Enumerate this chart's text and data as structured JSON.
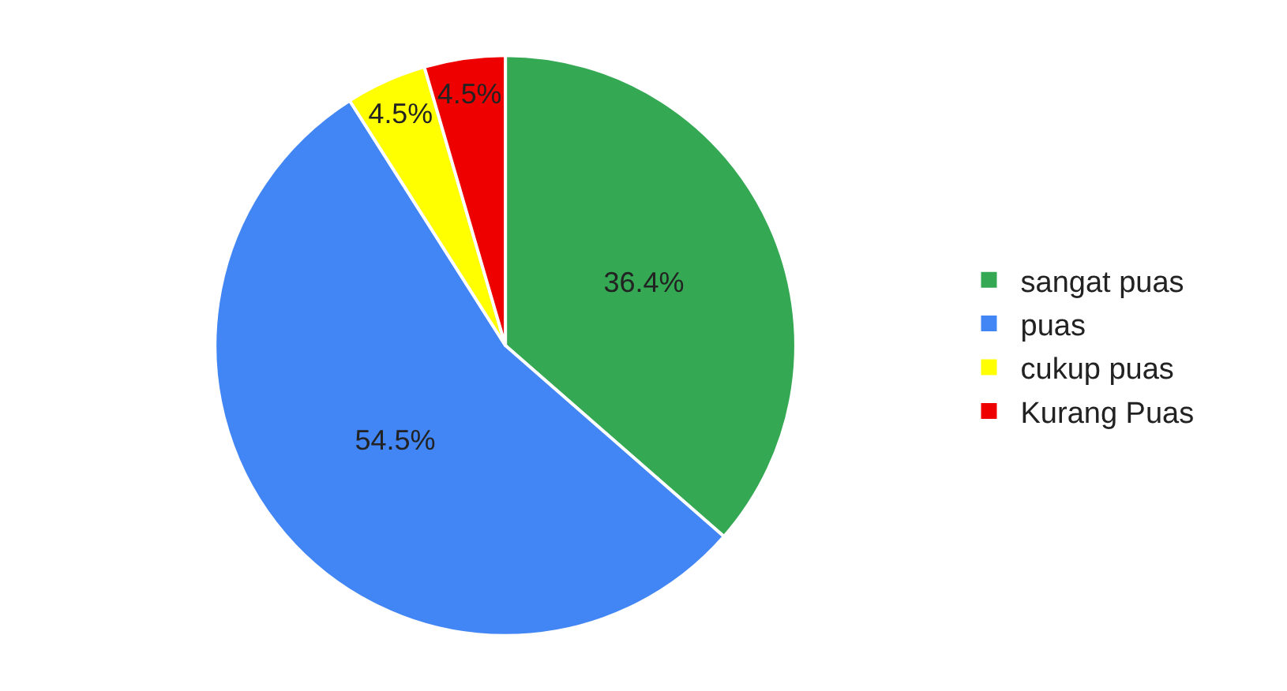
{
  "chart_data": {
    "type": "pie",
    "categories": [
      "sangat puas",
      "puas",
      "cukup puas",
      "Kurang Puas"
    ],
    "values": [
      36.4,
      54.5,
      4.5,
      4.5
    ],
    "value_labels": [
      "36.4%",
      "54.5%",
      "4.5%",
      "4.5%"
    ],
    "colors": [
      "#34a853",
      "#4285f4",
      "#ffff00",
      "#ee0000"
    ],
    "legend": "right"
  }
}
